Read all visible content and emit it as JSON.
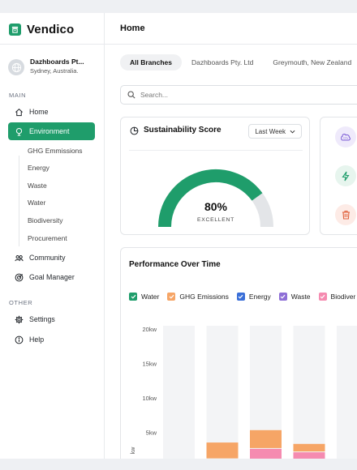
{
  "brand": {
    "name": "Vendico"
  },
  "org": {
    "name": "Dazhboards Pt...",
    "location": "Sydney, Australia."
  },
  "nav": {
    "main_label": "MAIN",
    "other_label": "OTHER",
    "items": [
      {
        "label": "Home",
        "icon": "home-icon"
      },
      {
        "label": "Environment",
        "icon": "leaf-icon",
        "active": true
      },
      {
        "label": "Community",
        "icon": "community-icon"
      },
      {
        "label": "Goal Manager",
        "icon": "target-icon"
      },
      {
        "label": "Settings",
        "icon": "gear-icon"
      },
      {
        "label": "Help",
        "icon": "info-icon"
      }
    ],
    "env_sub": [
      "GHG Emmissions",
      "Energy",
      "Waste",
      "Water",
      "Biodiversity",
      "Procurement"
    ]
  },
  "header": {
    "title": "Home"
  },
  "tabs": [
    "All Branches",
    "Dazhboards Pty. Ltd",
    "Greymouth, New Zealand"
  ],
  "search": {
    "placeholder": "Search..."
  },
  "score": {
    "title": "Sustainability Score",
    "period": "Last Week",
    "percent_label": "80%",
    "value": 0.8,
    "rating": "EXCELLENT",
    "colors": {
      "fill": "#1f9d6b",
      "track": "#e3e5e8"
    }
  },
  "side_icons": [
    "co2-icon",
    "lightning-icon",
    "trash-icon"
  ],
  "performance": {
    "title": "Performance Over Time",
    "legend": [
      {
        "label": "Water",
        "color": "#1f9d6b",
        "checked": true
      },
      {
        "label": "GHG Emissions",
        "color": "#f6a566",
        "checked": true
      },
      {
        "label": "Energy",
        "color": "#3a6fd8",
        "checked": true
      },
      {
        "label": "Waste",
        "color": "#8e6fd6",
        "checked": true
      },
      {
        "label": "Biodiver",
        "color": "#f58bb0",
        "checked": true
      }
    ]
  },
  "chart_data": {
    "type": "bar",
    "ylabel": "kw",
    "yticks": [
      "5kw",
      "10kw",
      "15kw",
      "20kw"
    ],
    "ylim": [
      0,
      20
    ],
    "grid": false,
    "series": [
      {
        "name": "Biodiver",
        "color": "#f58bb0",
        "values": [
          0,
          1.1,
          2.6,
          2.1,
          0
        ]
      },
      {
        "name": "GHG Emissions",
        "color": "#f6a566",
        "values": [
          0.6,
          2.3,
          2.6,
          1.1,
          0.9
        ]
      }
    ]
  }
}
